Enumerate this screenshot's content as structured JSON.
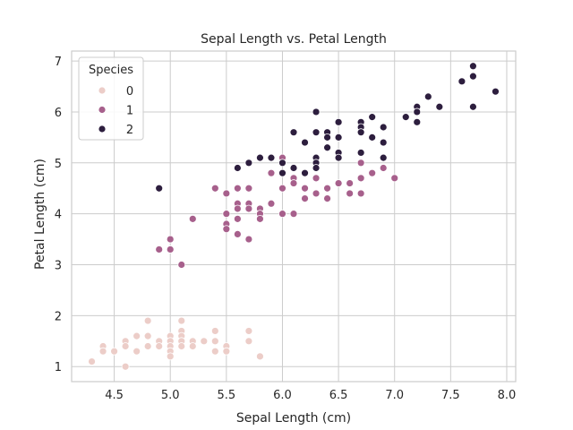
{
  "chart_data": {
    "type": "scatter",
    "title": "Sepal Length vs. Petal Length",
    "xlabel": "Sepal Length (cm)",
    "ylabel": "Petal Length (cm)",
    "xlim": [
      4.12,
      8.08
    ],
    "ylim": [
      0.705,
      7.195
    ],
    "xticks": [
      4.5,
      5.0,
      5.5,
      6.0,
      6.5,
      7.0,
      7.5,
      8.0
    ],
    "xtick_labels": [
      "4.5",
      "5.0",
      "5.5",
      "6.0",
      "6.5",
      "7.0",
      "7.5",
      "8.0"
    ],
    "yticks": [
      1,
      2,
      3,
      4,
      5,
      6,
      7
    ],
    "ytick_labels": [
      "1",
      "2",
      "3",
      "4",
      "5",
      "6",
      "7"
    ],
    "grid": true,
    "legend": {
      "title": "Species",
      "placement": "top-left"
    },
    "series": [
      {
        "name": "0",
        "color": "#eccdc8",
        "points": [
          [
            4.3,
            1.1
          ],
          [
            4.4,
            1.4
          ],
          [
            4.4,
            1.3
          ],
          [
            4.5,
            1.3
          ],
          [
            4.6,
            1.5
          ],
          [
            4.6,
            1.4
          ],
          [
            4.6,
            1.0
          ],
          [
            4.7,
            1.6
          ],
          [
            4.7,
            1.3
          ],
          [
            4.8,
            1.9
          ],
          [
            4.8,
            1.6
          ],
          [
            4.8,
            1.4
          ],
          [
            4.9,
            1.5
          ],
          [
            4.9,
            1.4
          ],
          [
            5.0,
            1.6
          ],
          [
            5.0,
            1.5
          ],
          [
            5.0,
            1.4
          ],
          [
            5.0,
            1.3
          ],
          [
            5.0,
            1.2
          ],
          [
            5.1,
            1.9
          ],
          [
            5.1,
            1.7
          ],
          [
            5.1,
            1.6
          ],
          [
            5.1,
            1.5
          ],
          [
            5.1,
            1.4
          ],
          [
            5.2,
            1.5
          ],
          [
            5.2,
            1.4
          ],
          [
            5.3,
            1.5
          ],
          [
            5.4,
            1.7
          ],
          [
            5.4,
            1.5
          ],
          [
            5.4,
            1.3
          ],
          [
            5.5,
            1.4
          ],
          [
            5.5,
            1.3
          ],
          [
            5.7,
            1.7
          ],
          [
            5.7,
            1.5
          ],
          [
            5.8,
            1.2
          ]
        ]
      },
      {
        "name": "1",
        "color": "#a7608c",
        "points": [
          [
            4.9,
            3.3
          ],
          [
            5.0,
            3.5
          ],
          [
            5.0,
            3.3
          ],
          [
            5.1,
            3.0
          ],
          [
            5.2,
            3.9
          ],
          [
            5.4,
            4.5
          ],
          [
            5.5,
            4.4
          ],
          [
            5.5,
            4.0
          ],
          [
            5.5,
            3.8
          ],
          [
            5.5,
            3.7
          ],
          [
            5.6,
            4.5
          ],
          [
            5.6,
            4.2
          ],
          [
            5.6,
            4.1
          ],
          [
            5.6,
            3.9
          ],
          [
            5.6,
            3.6
          ],
          [
            5.7,
            4.5
          ],
          [
            5.7,
            4.2
          ],
          [
            5.7,
            4.1
          ],
          [
            5.7,
            3.5
          ],
          [
            5.8,
            4.1
          ],
          [
            5.8,
            4.0
          ],
          [
            5.8,
            3.9
          ],
          [
            5.9,
            4.8
          ],
          [
            5.9,
            4.2
          ],
          [
            6.0,
            5.1
          ],
          [
            6.0,
            4.5
          ],
          [
            6.0,
            4.0
          ],
          [
            6.1,
            4.7
          ],
          [
            6.1,
            4.6
          ],
          [
            6.1,
            4.0
          ],
          [
            6.2,
            4.5
          ],
          [
            6.2,
            4.3
          ],
          [
            6.3,
            4.9
          ],
          [
            6.3,
            4.7
          ],
          [
            6.3,
            4.4
          ],
          [
            6.4,
            4.5
          ],
          [
            6.4,
            4.3
          ],
          [
            6.5,
            4.6
          ],
          [
            6.6,
            4.6
          ],
          [
            6.6,
            4.4
          ],
          [
            6.7,
            5.0
          ],
          [
            6.7,
            4.7
          ],
          [
            6.7,
            4.4
          ],
          [
            6.8,
            4.8
          ],
          [
            6.9,
            4.9
          ],
          [
            7.0,
            4.7
          ]
        ]
      },
      {
        "name": "2",
        "color": "#2d1e3e",
        "points": [
          [
            4.9,
            4.5
          ],
          [
            5.6,
            4.9
          ],
          [
            5.7,
            5.0
          ],
          [
            5.8,
            5.1
          ],
          [
            5.9,
            5.1
          ],
          [
            6.0,
            5.0
          ],
          [
            6.0,
            4.8
          ],
          [
            6.1,
            5.6
          ],
          [
            6.1,
            4.9
          ],
          [
            6.2,
            5.4
          ],
          [
            6.2,
            4.8
          ],
          [
            6.3,
            6.0
          ],
          [
            6.3,
            5.6
          ],
          [
            6.3,
            5.1
          ],
          [
            6.3,
            5.0
          ],
          [
            6.3,
            4.9
          ],
          [
            6.4,
            5.6
          ],
          [
            6.4,
            5.5
          ],
          [
            6.4,
            5.3
          ],
          [
            6.5,
            5.8
          ],
          [
            6.5,
            5.5
          ],
          [
            6.5,
            5.2
          ],
          [
            6.5,
            5.1
          ],
          [
            6.7,
            5.8
          ],
          [
            6.7,
            5.7
          ],
          [
            6.7,
            5.6
          ],
          [
            6.7,
            5.2
          ],
          [
            6.8,
            5.9
          ],
          [
            6.8,
            5.5
          ],
          [
            6.9,
            5.7
          ],
          [
            6.9,
            5.4
          ],
          [
            6.9,
            5.1
          ],
          [
            7.1,
            5.9
          ],
          [
            7.2,
            6.1
          ],
          [
            7.2,
            6.0
          ],
          [
            7.2,
            5.8
          ],
          [
            7.3,
            6.3
          ],
          [
            7.4,
            6.1
          ],
          [
            7.6,
            6.6
          ],
          [
            7.7,
            6.9
          ],
          [
            7.7,
            6.7
          ],
          [
            7.7,
            6.1
          ],
          [
            7.9,
            6.4
          ]
        ]
      }
    ]
  }
}
